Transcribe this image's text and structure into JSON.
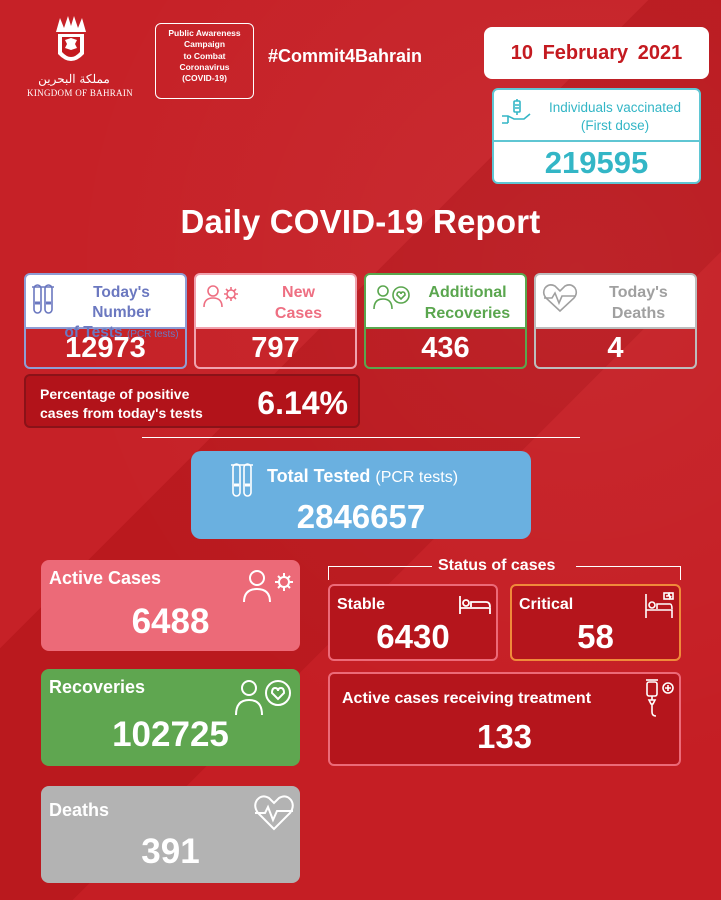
{
  "header": {
    "emblem_arabic": "مملكة البحرين",
    "emblem_english": "KINGDOM OF BAHRAIN",
    "campaign_lines": [
      "Public Awareness",
      "Campaign",
      "to Combat",
      "Coronavirus",
      "(COVID-19)"
    ],
    "hashtag": "#Commit4Bahrain",
    "date": "10  February 2021"
  },
  "vaccinated": {
    "label_line1": "Individuals vaccinated",
    "label_line2": "(First dose)",
    "value": "219595",
    "icon": "syringe-hand-icon"
  },
  "title": "Daily COVID-19 Report",
  "stats": {
    "tests": {
      "label_line1": "Today's Number",
      "label_line2": "of Tests",
      "sub": "(PCR tests)",
      "value": "12973",
      "icon": "test-tubes-icon"
    },
    "new_cases": {
      "label_line1": "New",
      "label_line2": "Cases",
      "value": "797",
      "icon": "person-virus-icon"
    },
    "recoveries": {
      "label_line1": "Additional",
      "label_line2": "Recoveries",
      "value": "436",
      "icon": "person-heart-icon"
    },
    "deaths": {
      "label_line1": "Today's",
      "label_line2": "Deaths",
      "value": "4",
      "icon": "heartbeat-icon"
    }
  },
  "percentage": {
    "label_line1": "Percentage of positive",
    "label_line2": "cases from today's tests",
    "value": "6.14%"
  },
  "total_tested": {
    "label": "Total Tested",
    "sub": "(PCR tests)",
    "value": "2846657",
    "icon": "test-tubes-icon"
  },
  "summary": {
    "active": {
      "label": "Active Cases",
      "value": "6488",
      "icon": "person-virus-icon"
    },
    "recoveries": {
      "label": "Recoveries",
      "value": "102725",
      "icon": "person-heart-icon"
    },
    "deaths": {
      "label": "Deaths",
      "value": "391",
      "icon": "heartbeat-icon"
    }
  },
  "status": {
    "title": "Status of cases",
    "stable": {
      "label": "Stable",
      "value": "6430",
      "icon": "bed-icon"
    },
    "critical": {
      "label": "Critical",
      "value": "58",
      "icon": "hospital-bed-icon"
    },
    "treatment": {
      "label": "Active cases receiving treatment",
      "value": "133",
      "icon": "iv-drip-icon"
    }
  },
  "colors": {
    "background": "#c41a20",
    "tests": "#8f9dd4",
    "new_cases": "#ee6f82",
    "recoveries": "#5aa64e",
    "deaths": "#bdbdbd",
    "vaccine": "#33b6c6",
    "total_tested": "#6ab0e0",
    "critical": "#f08a3a"
  }
}
